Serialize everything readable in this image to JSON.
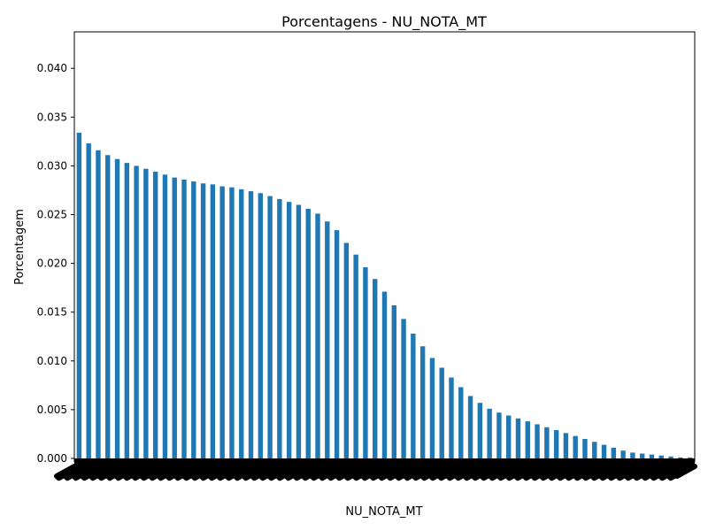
{
  "chart_data": {
    "type": "bar",
    "title": "Porcentagens - NU_NOTA_MT",
    "xlabel": "NU_NOTA_MT",
    "ylabel": "Porcentagem",
    "ylim": [
      0,
      0.0435
    ],
    "yticks": [
      "0.000",
      "0.005",
      "0.010",
      "0.015",
      "0.020",
      "0.025",
      "0.030",
      "0.035",
      "0.040"
    ],
    "ytick_values": [
      0,
      0.005,
      0.01,
      0.015,
      0.02,
      0.025,
      0.03,
      0.035,
      0.04
    ],
    "grid": false,
    "bar_color": "#1f77b4",
    "values": [
      0.0334,
      0.0323,
      0.0316,
      0.0311,
      0.0307,
      0.0303,
      0.03,
      0.0297,
      0.0294,
      0.0291,
      0.0288,
      0.0286,
      0.0284,
      0.0282,
      0.0281,
      0.0279,
      0.0278,
      0.0276,
      0.0274,
      0.0272,
      0.0269,
      0.0266,
      0.0263,
      0.026,
      0.0256,
      0.0251,
      0.0243,
      0.0234,
      0.0221,
      0.0209,
      0.0196,
      0.0184,
      0.0171,
      0.0157,
      0.0143,
      0.0128,
      0.0115,
      0.0103,
      0.0093,
      0.0083,
      0.0073,
      0.0064,
      0.0057,
      0.0051,
      0.0047,
      0.0044,
      0.0041,
      0.0038,
      0.0035,
      0.0032,
      0.0029,
      0.0026,
      0.0023,
      0.002,
      0.0017,
      0.0014,
      0.0011,
      0.0008,
      0.0006,
      0.0005,
      0.0004,
      0.0003,
      0.0002,
      0.0001,
      0.0001
    ],
    "x_tick_labels_note": ""
  }
}
